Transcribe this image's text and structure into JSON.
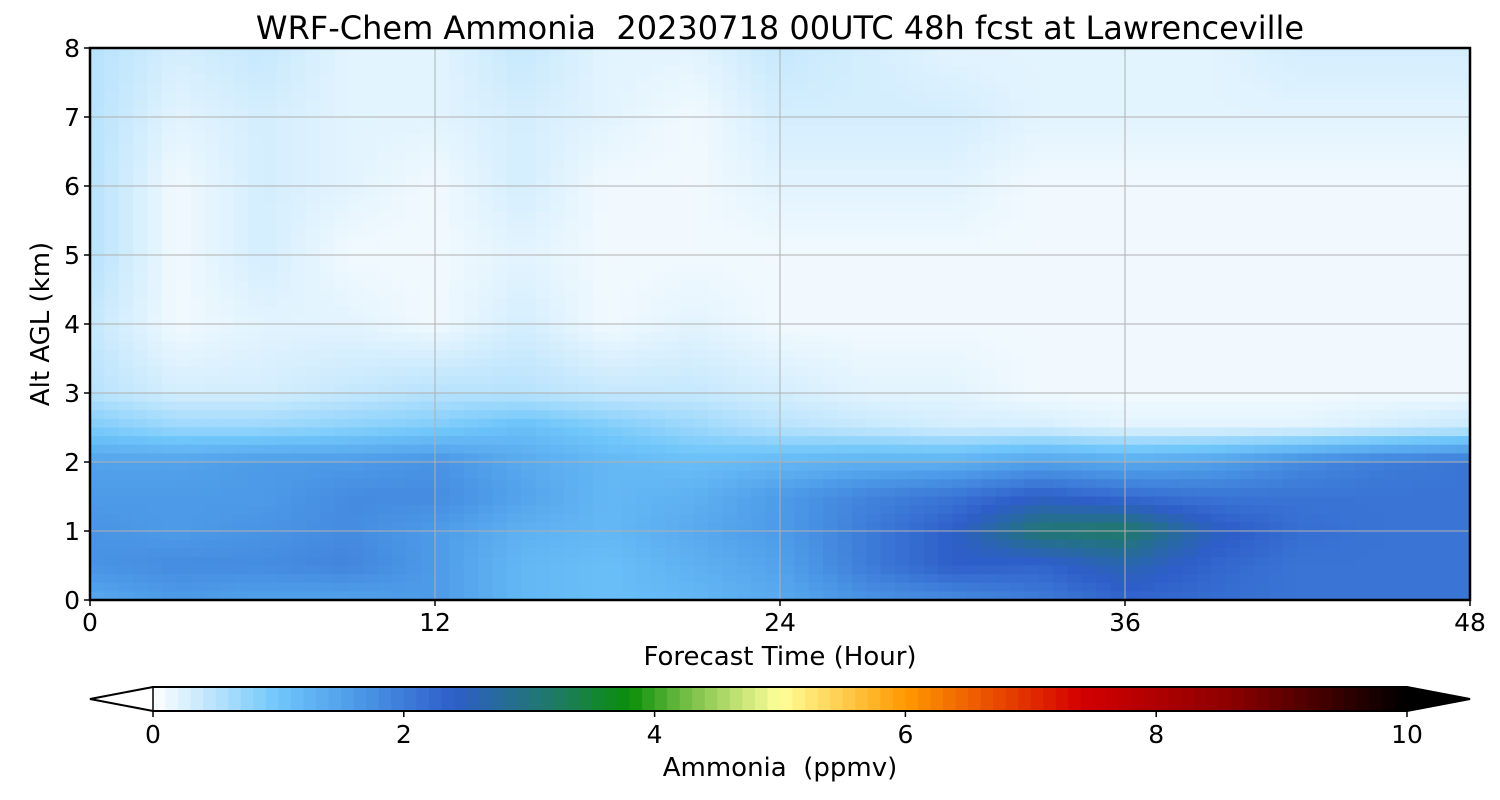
{
  "chart_data": {
    "type": "heatmap",
    "title": "WRF-Chem Ammonia  20230718 00UTC 48h fcst at Lawrenceville",
    "xlabel": "Forecast Time (Hour)",
    "ylabel": "Alt AGL (km)",
    "xlim": [
      0,
      48
    ],
    "ylim": [
      0,
      8
    ],
    "x_ticks": [
      "0",
      "12",
      "24",
      "36",
      "48"
    ],
    "y_ticks": [
      "0",
      "1",
      "2",
      "3",
      "4",
      "5",
      "6",
      "7",
      "8"
    ],
    "grid": true,
    "x": [
      0,
      3,
      6,
      9,
      12,
      15,
      18,
      21,
      24,
      27,
      30,
      33,
      36,
      39,
      42,
      45,
      48
    ],
    "y": [
      0,
      0.5,
      1,
      1.5,
      2,
      2.5,
      3,
      4,
      5,
      6,
      7,
      8
    ],
    "z": [
      [
        1.4,
        1.6,
        1.5,
        1.5,
        1.6,
        1.2,
        1.1,
        1.2,
        1.4,
        1.7,
        1.8,
        2.0,
        2.3,
        2.2,
        2.1,
        2.1,
        2.1
      ],
      [
        1.7,
        1.8,
        1.8,
        1.9,
        1.6,
        1.2,
        1.1,
        1.3,
        1.5,
        2.0,
        2.4,
        2.3,
        2.6,
        2.3,
        2.1,
        2.1,
        2.1
      ],
      [
        1.7,
        1.6,
        1.7,
        1.8,
        1.6,
        1.3,
        1.2,
        1.4,
        1.6,
        2.0,
        2.4,
        3.1,
        3.2,
        2.5,
        2.2,
        2.1,
        2.1
      ],
      [
        1.6,
        1.6,
        1.6,
        1.8,
        1.8,
        1.5,
        1.2,
        1.3,
        1.6,
        1.9,
        2.1,
        2.4,
        2.2,
        2.1,
        2.1,
        2.1,
        2.1
      ],
      [
        1.5,
        1.5,
        1.6,
        1.6,
        1.7,
        1.4,
        1.2,
        1.1,
        1.2,
        1.3,
        1.3,
        1.5,
        1.4,
        1.5,
        1.8,
        2.0,
        2.1
      ],
      [
        0.9,
        0.7,
        0.7,
        0.8,
        0.9,
        1.1,
        0.9,
        0.7,
        0.5,
        0.4,
        0.3,
        0.3,
        0.2,
        0.2,
        0.2,
        0.3,
        0.4
      ],
      [
        0.5,
        0.3,
        0.3,
        0.4,
        0.5,
        0.5,
        0.4,
        0.4,
        0.3,
        0.2,
        0.2,
        0.1,
        0.1,
        0.1,
        0.1,
        0.1,
        0.1
      ],
      [
        0.4,
        0.1,
        0.2,
        0.2,
        0.1,
        0.3,
        0.1,
        0.2,
        0.1,
        0.1,
        0.1,
        0.1,
        0.1,
        0.1,
        0.1,
        0.1,
        0.1
      ],
      [
        0.5,
        0.1,
        0.3,
        0.1,
        0.1,
        0.2,
        0.1,
        0.1,
        0.1,
        0.1,
        0.1,
        0.1,
        0.1,
        0.1,
        0.1,
        0.1,
        0.1
      ],
      [
        0.5,
        0.1,
        0.3,
        0.2,
        0.1,
        0.3,
        0.1,
        0.1,
        0.2,
        0.2,
        0.2,
        0.1,
        0.1,
        0.1,
        0.1,
        0.1,
        0.1
      ],
      [
        0.5,
        0.2,
        0.3,
        0.2,
        0.2,
        0.3,
        0.2,
        0.1,
        0.3,
        0.3,
        0.3,
        0.2,
        0.2,
        0.2,
        0.2,
        0.2,
        0.2
      ],
      [
        0.5,
        0.3,
        0.4,
        0.2,
        0.2,
        0.4,
        0.2,
        0.2,
        0.4,
        0.3,
        0.2,
        0.2,
        0.2,
        0.2,
        0.3,
        0.3,
        0.3
      ]
    ],
    "colorbar": {
      "label": "Ammonia  (ppmv)",
      "ticks": [
        "0",
        "2",
        "4",
        "6",
        "8",
        "10"
      ],
      "range": [
        0,
        10
      ],
      "extend": "both",
      "stops": [
        {
          "v": 0.0,
          "c": "#ffffff"
        },
        {
          "v": 1.0,
          "c": "#6fc6fa"
        },
        {
          "v": 1.6,
          "c": "#4d9be8"
        },
        {
          "v": 2.4,
          "c": "#2e5ec9"
        },
        {
          "v": 3.2,
          "c": "#1f7a66"
        },
        {
          "v": 3.8,
          "c": "#0a8f0a"
        },
        {
          "v": 4.3,
          "c": "#7dc24a"
        },
        {
          "v": 5.0,
          "c": "#ffff99"
        },
        {
          "v": 6.0,
          "c": "#ff9900"
        },
        {
          "v": 7.4,
          "c": "#d40000"
        },
        {
          "v": 8.6,
          "c": "#8c0000"
        },
        {
          "v": 10.0,
          "c": "#000000"
        }
      ],
      "under_color": "#ffffff",
      "over_color": "#000000"
    }
  }
}
